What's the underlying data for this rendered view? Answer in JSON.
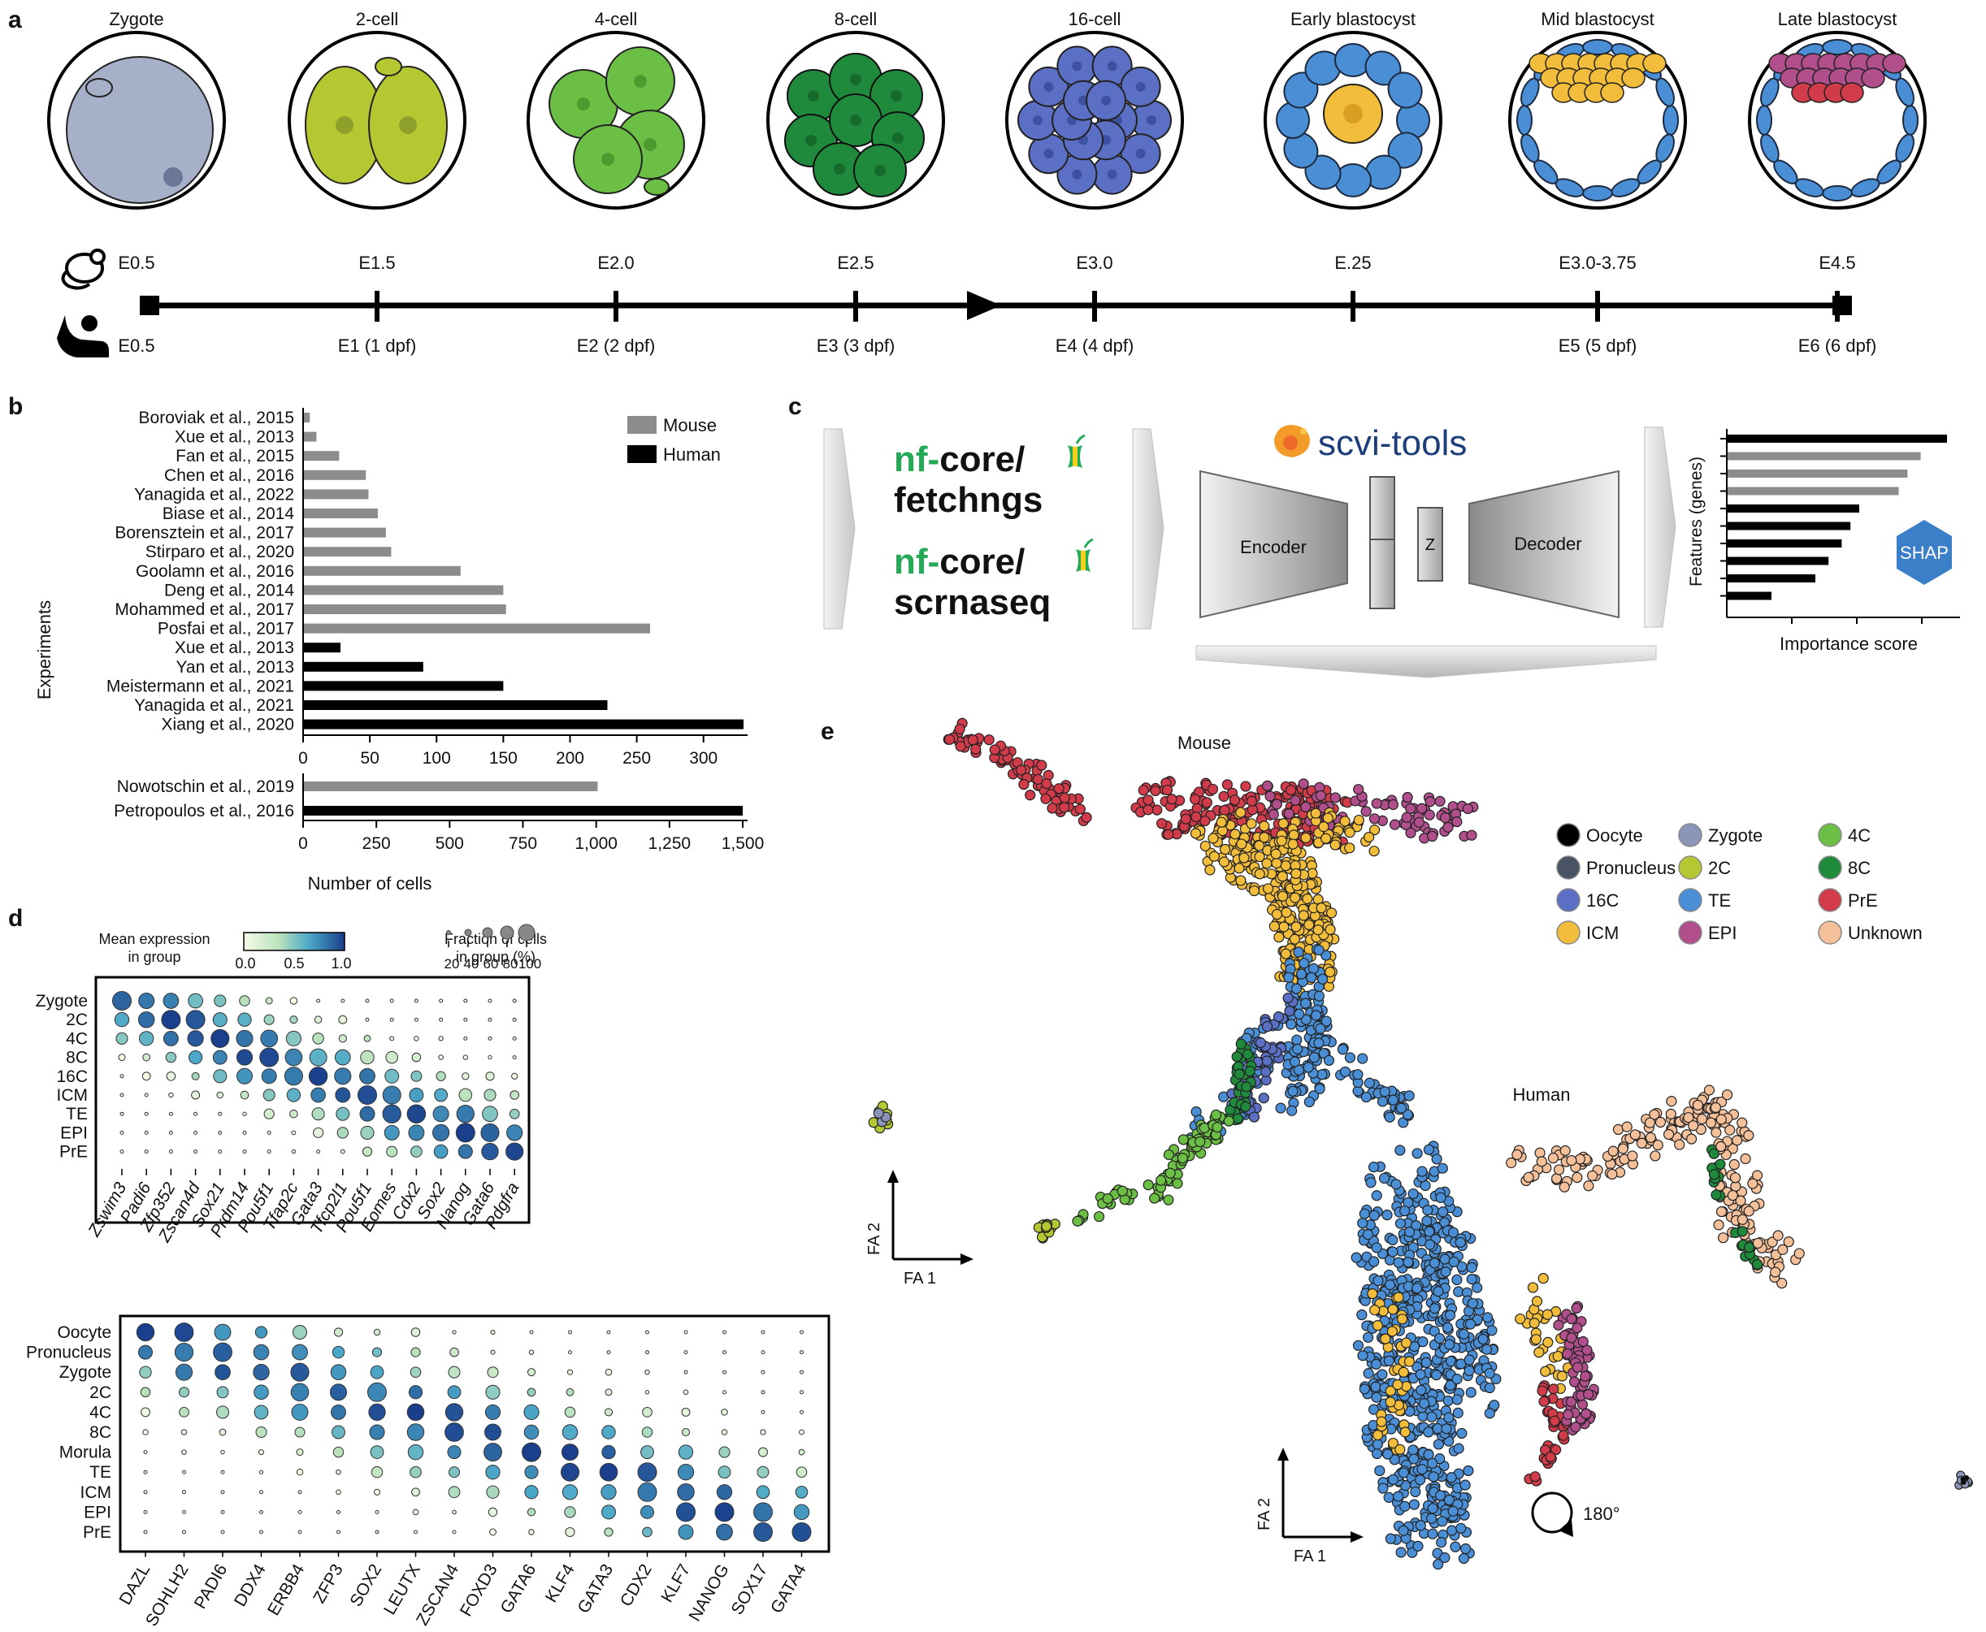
{
  "panels": {
    "a": "a",
    "b": "b",
    "c": "c",
    "d": "d",
    "e": "e"
  },
  "panel_a": {
    "stages": [
      {
        "label": "Zygote",
        "mouse": "E0.5"
      },
      {
        "label": "2-cell",
        "mouse": "E1.5"
      },
      {
        "label": "4-cell",
        "mouse": "E2.0"
      },
      {
        "label": "8-cell",
        "mouse": "E2.5"
      },
      {
        "label": "16-cell",
        "mouse": "E3.0"
      },
      {
        "label": "Early blastocyst",
        "mouse": "E.25"
      },
      {
        "label": "Mid blastocyst",
        "mouse": "E3.0-3.75"
      },
      {
        "label": "Late blastocyst",
        "mouse": "E4.5"
      }
    ],
    "human_labels": [
      "E0.5",
      "E1 (1 dpf)",
      "E2 (2 dpf)",
      "E3 (3 dpf)",
      "E4 (4 dpf)",
      "",
      "E5 (5 dpf)",
      "E6 (6 dpf)"
    ],
    "colors": {
      "zygote": "#a6b0c8",
      "twocell": "#b5c832",
      "fourcell": "#6cbf45",
      "eightcell": "#1f8a3c",
      "sixteen": "#5b6fc4",
      "te": "#4a8fd6",
      "icm": "#f2bd3a",
      "epi": "#b04f8c",
      "pre": "#d23b4a"
    }
  },
  "panel_b": {
    "ylabel": "Experiments",
    "xlabel": "Number of cells",
    "legend": [
      "Mouse",
      "Human"
    ],
    "colors": {
      "Mouse": "#8c8c8c",
      "Human": "#000000"
    },
    "top_ticks": [
      "0",
      "50",
      "100",
      "150",
      "200",
      "250",
      "300"
    ],
    "bottom_ticks": [
      "0",
      "250",
      "500",
      "750",
      "1,000",
      "1,250",
      "1,500"
    ]
  },
  "chart_data": [
    {
      "type": "bar",
      "orientation": "horizontal",
      "xlim": [
        0,
        330
      ],
      "categories": [
        "Boroviak et al., 2015",
        "Xue et al., 2013",
        "Fan et al., 2015",
        "Chen et al., 2016",
        "Yanagida et al., 2022",
        "Biase et al., 2014",
        "Borensztein et al., 2017",
        "Stirparo et al., 2020",
        "Goolamn et al., 2016",
        "Deng et al., 2014",
        "Mohammed et al., 2017",
        "Posfai et al., 2017",
        "Xue et al., 2013",
        "Yan et al., 2013",
        "Meistermann et al., 2021",
        "Yanagida et al., 2021",
        "Xiang et al., 2020"
      ],
      "values": [
        5,
        10,
        27,
        47,
        49,
        56,
        62,
        66,
        118,
        150,
        152,
        260,
        28,
        90,
        150,
        228,
        330
      ],
      "species": [
        "Mouse",
        "Mouse",
        "Mouse",
        "Mouse",
        "Mouse",
        "Mouse",
        "Mouse",
        "Mouse",
        "Mouse",
        "Mouse",
        "Mouse",
        "Mouse",
        "Human",
        "Human",
        "Human",
        "Human",
        "Human"
      ]
    },
    {
      "type": "bar",
      "orientation": "horizontal",
      "xlim": [
        0,
        1520
      ],
      "categories": [
        "Nowotschin et al., 2019",
        "Petropoulos et al., 2016"
      ],
      "values": [
        1005,
        1500
      ],
      "species": [
        "Mouse",
        "Human"
      ]
    },
    {
      "type": "bar",
      "orientation": "horizontal",
      "xlabel": "Importance score",
      "ylabel": "Features (genes)",
      "values": [
        1.0,
        0.88,
        0.82,
        0.78,
        0.6,
        0.56,
        0.52,
        0.46,
        0.4,
        0.2
      ],
      "colors": [
        "#000000",
        "#8c8c8c",
        "#8c8c8c",
        "#8c8c8c",
        "#000000",
        "#000000",
        "#000000",
        "#000000",
        "#000000",
        "#000000"
      ]
    }
  ],
  "panel_c": {
    "nf1_a": "nf-",
    "nf1_b": "core/",
    "nf1_c": "fetchngs",
    "nf2_a": "nf-",
    "nf2_b": "core/",
    "nf2_c": "scrnaseq",
    "scvi": "scvi-tools",
    "encoder": "Encoder",
    "z": "Z",
    "decoder": "Decoder",
    "shap": "SHAP",
    "ylabel": "Features (genes)",
    "xlabel": "Importance score"
  },
  "panel_d": {
    "cbar_title_1": "Mean expression",
    "cbar_title_2": "in group",
    "cbar_ticks": [
      "0.0",
      "0.5",
      "1.0"
    ],
    "size_title_1": "Fraction of cells",
    "size_title_2": "in group (%)",
    "size_ticks": [
      "20",
      "40",
      "60",
      "80",
      "100"
    ],
    "mouse_rows": [
      "Zygote",
      "2C",
      "4C",
      "8C",
      "16C",
      "ICM",
      "TE",
      "EPI",
      "PrE"
    ],
    "mouse_genes": [
      "Zswim3",
      "Padi6",
      "Zfp352",
      "Zscan4d",
      "Sox21",
      "Prdm14",
      "Pou5f1",
      "Tfap2c",
      "Gata3",
      "Tfcp2l1",
      "Pou5f1",
      "Eomes",
      "Cdx2",
      "Sox2",
      "Nanog",
      "Gata6",
      "Pdgfra"
    ],
    "human_rows": [
      "Oocyte",
      "Pronucleus",
      "Zygote",
      "2C",
      "4C",
      "8C",
      "Morula",
      "TE",
      "ICM",
      "EPI",
      "PrE"
    ],
    "human_genes": [
      "DAZL",
      "SOHLH2",
      "PADI6",
      "DDX4",
      "ERBB4",
      "ZFP3",
      "SOX2",
      "LEUTX",
      "ZSCAN4",
      "FOXD3",
      "GATA6",
      "KLF4",
      "GATA3",
      "CDX2",
      "KLF7",
      "NANOG",
      "SOX17",
      "GATA4"
    ]
  },
  "panel_e": {
    "mouse_title": "Mouse",
    "human_title": "Human",
    "fa1": "FA 1",
    "fa2": "FA 2",
    "rotation": "180°",
    "legend": [
      {
        "label": "Oocyte",
        "color": "#000000"
      },
      {
        "label": "Zygote",
        "color": "#8a95b8"
      },
      {
        "label": "4C",
        "color": "#6cbf45"
      },
      {
        "label": "Pronucleus",
        "color": "#4a5266"
      },
      {
        "label": "2C",
        "color": "#b5c832"
      },
      {
        "label": "8C",
        "color": "#1f8a3c"
      },
      {
        "label": "16C",
        "color": "#5b6fc4"
      },
      {
        "label": "TE",
        "color": "#4a8fd6"
      },
      {
        "label": "PrE",
        "color": "#d23b4a"
      },
      {
        "label": "ICM",
        "color": "#f2bd3a"
      },
      {
        "label": "EPI",
        "color": "#b04f8c"
      },
      {
        "label": "Unknown",
        "color": "#f4c09a"
      }
    ]
  }
}
